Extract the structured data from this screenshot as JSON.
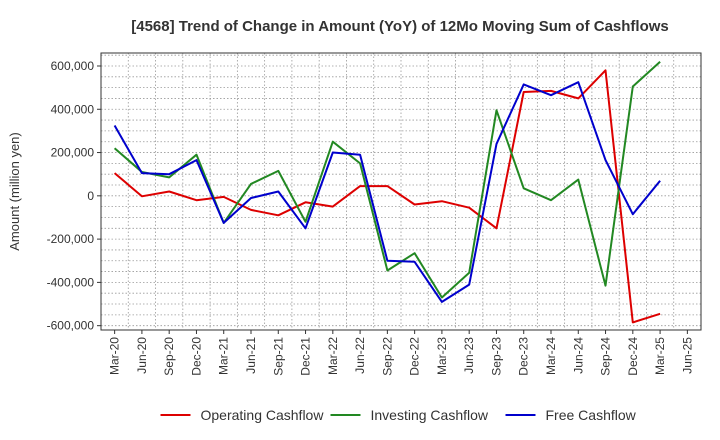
{
  "chart_data": {
    "type": "line",
    "title": "[4568]  Trend of Change in Amount (YoY) of 12Mo Moving Sum of Cashflows",
    "xlabel": "",
    "ylabel": "Amount (million yen)",
    "ylim": [
      -620000,
      660000
    ],
    "y_ticks": [
      600000,
      400000,
      200000,
      0,
      -200000,
      -400000,
      -600000
    ],
    "y_tick_labels": [
      "600,000",
      "400,000",
      "200,000",
      "0",
      "-200,000",
      "-400,000",
      "-600,000"
    ],
    "x_tick_labels": [
      "Mar-20",
      "Jun-20",
      "Sep-20",
      "Dec-20",
      "Mar-21",
      "Jun-21",
      "Sep-21",
      "Dec-21",
      "Mar-22",
      "Jun-22",
      "Sep-22",
      "Dec-22",
      "Mar-23",
      "Jun-23",
      "Sep-23",
      "Dec-23",
      "Mar-24",
      "Jun-24",
      "Sep-24",
      "Dec-24",
      "Mar-25",
      "Jun-25"
    ],
    "categories": [
      "Mar-20",
      "Jun-20",
      "Sep-20",
      "Dec-20",
      "Mar-21",
      "Jun-21",
      "Sep-21",
      "Dec-21",
      "Mar-22",
      "Jun-22",
      "Sep-22",
      "Dec-22",
      "Mar-23",
      "Jun-23",
      "Sep-23",
      "Dec-23",
      "Mar-24",
      "Jun-24",
      "Sep-24",
      "Dec-24",
      "Mar-25"
    ],
    "grid": true,
    "legend_position": "bottom",
    "series": [
      {
        "name": "Operating Cashflow",
        "color": "#dd0000",
        "values": [
          105000,
          -2000,
          20000,
          -20000,
          -5000,
          -65000,
          -90000,
          -30000,
          -50000,
          45000,
          45000,
          -40000,
          -25000,
          -55000,
          -150000,
          480000,
          485000,
          450000,
          580000,
          -585000,
          -545000
        ]
      },
      {
        "name": "Investing Cashflow",
        "color": "#228822",
        "values": [
          220000,
          110000,
          85000,
          190000,
          -125000,
          55000,
          115000,
          -120000,
          250000,
          150000,
          -345000,
          -265000,
          -470000,
          -355000,
          395000,
          35000,
          -20000,
          75000,
          -415000,
          505000,
          620000
        ]
      },
      {
        "name": "Free Cashflow",
        "color": "#0000cc",
        "values": [
          325000,
          105000,
          100000,
          165000,
          -125000,
          -10000,
          20000,
          -150000,
          200000,
          190000,
          -300000,
          -305000,
          -490000,
          -410000,
          240000,
          515000,
          465000,
          525000,
          165000,
          -85000,
          70000
        ]
      }
    ]
  }
}
